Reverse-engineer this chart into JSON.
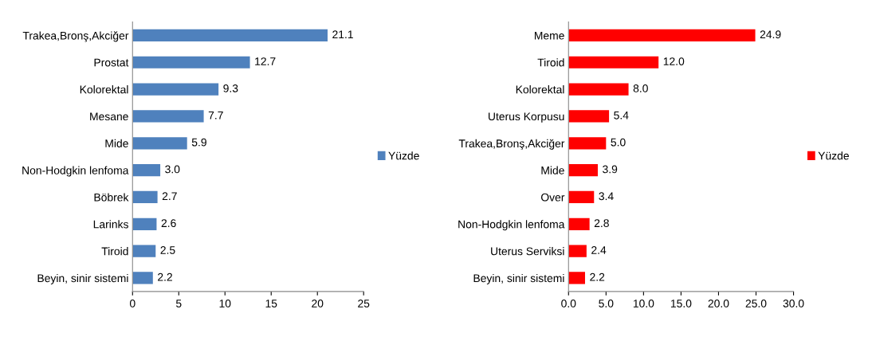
{
  "chart_data": [
    {
      "type": "bar",
      "orientation": "horizontal",
      "categories": [
        "Trakea,Bronş,Akciğer",
        "Prostat",
        "Kolorektal",
        "Mesane",
        "Mide",
        "Non-Hodgkin lenfoma",
        "Böbrek",
        "Larinks",
        "Tiroid",
        "Beyin, sinir sistemi"
      ],
      "series": [
        {
          "name": "Yüzde",
          "color": "#4f81bd",
          "values": [
            21.1,
            12.7,
            9.3,
            7.7,
            5.9,
            3.0,
            2.7,
            2.6,
            2.5,
            2.2
          ],
          "value_labels": [
            "21.1",
            "12.7",
            "9.3",
            "7.7",
            "5.9",
            "3.0",
            "2.7",
            "2.6",
            "2.5",
            "2.2"
          ]
        }
      ],
      "xlim": [
        0,
        25
      ],
      "xticks": [
        0,
        5,
        10,
        15,
        20,
        25
      ],
      "grid": false,
      "legend": "right"
    },
    {
      "type": "bar",
      "orientation": "horizontal",
      "categories": [
        "Meme",
        "Tiroid",
        "Kolorektal",
        "Uterus Korpusu",
        "Trakea,Bronş,Akciğer",
        "Mide",
        "Over",
        "Non-Hodgkin lenfoma",
        "Uterus Serviksi",
        "Beyin, sinir sistemi"
      ],
      "series": [
        {
          "name": "Yüzde",
          "color": "#ff0000",
          "values": [
            24.9,
            12.0,
            8.0,
            5.4,
            5.0,
            3.9,
            3.4,
            2.8,
            2.4,
            2.2
          ],
          "value_labels": [
            "24.9",
            "12.0",
            "8.0",
            "5.4",
            "5.0",
            "3.9",
            "3.4",
            "2.8",
            "2.4",
            "2.2"
          ]
        }
      ],
      "xlim": [
        0,
        30
      ],
      "xticks": [
        {
          "value": 0,
          "label": "0.0"
        },
        {
          "value": 5,
          "label": "5.0"
        },
        {
          "value": 10,
          "label": "10.0"
        },
        {
          "value": 15,
          "label": "15.0"
        },
        {
          "value": 20,
          "label": "20.0"
        },
        {
          "value": 25,
          "label": "25.0"
        },
        {
          "value": 30,
          "label": "30.0"
        }
      ],
      "grid": false,
      "legend": "right"
    }
  ]
}
